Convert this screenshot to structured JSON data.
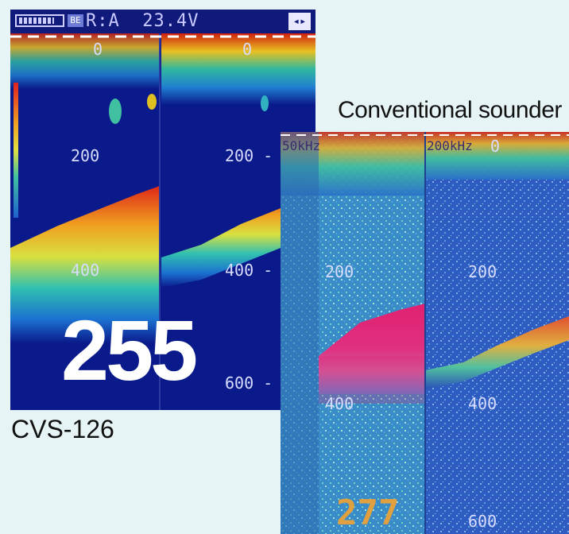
{
  "captions": {
    "cvs": "CVS-126",
    "conventional": "Conventional sounder"
  },
  "cvs_screen": {
    "status_text": "R:A  23.4V",
    "badge": "BE",
    "depth_left": [
      "0",
      "200",
      "400"
    ],
    "depth_right": [
      "0",
      "200 -",
      "400 -",
      "600 -"
    ],
    "current_depth": "255"
  },
  "conventional_screen": {
    "freq_left": "50kHz",
    "freq_right": "200kHz",
    "depth_left": [
      "200",
      "400"
    ],
    "depth_right": [
      "0",
      "200",
      "400",
      "600"
    ],
    "current_depth": "277"
  },
  "colors": {
    "background": "#e7f4f6",
    "cvs_water": "#0a1a8a",
    "conv_water": "#2a4fb8",
    "strong_echo": "#e02020",
    "medium_echo": "#f0c020",
    "weak_echo": "#30c0e0"
  }
}
